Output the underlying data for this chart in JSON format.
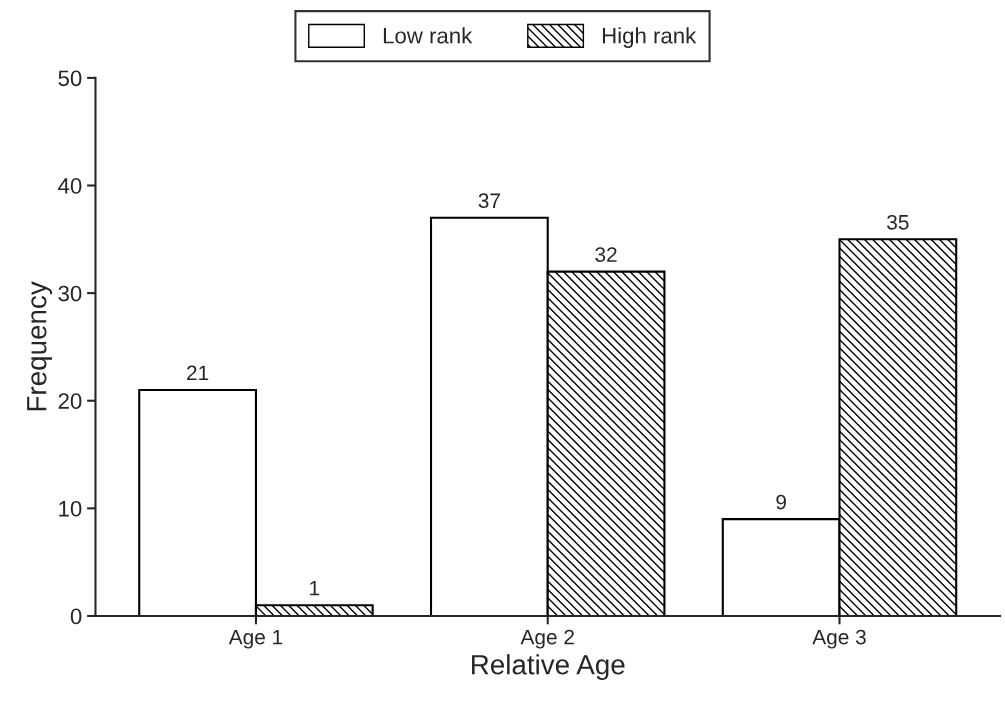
{
  "chart_data": {
    "type": "bar",
    "xlabel": "Relative Age",
    "ylabel": "Frequency",
    "categories": [
      "Age 1",
      "Age 2",
      "Age 3"
    ],
    "series": [
      {
        "name": "Low rank",
        "color": "#ffffff",
        "values": [
          21,
          37,
          9
        ]
      },
      {
        "name": "High rank",
        "color": "#000000",
        "values": [
          1,
          32,
          35
        ]
      }
    ],
    "ylim": [
      0,
      50
    ],
    "yticks": [
      0,
      10,
      20,
      30,
      40,
      50
    ],
    "data_labels": true,
    "grid": false,
    "legend": "top"
  }
}
